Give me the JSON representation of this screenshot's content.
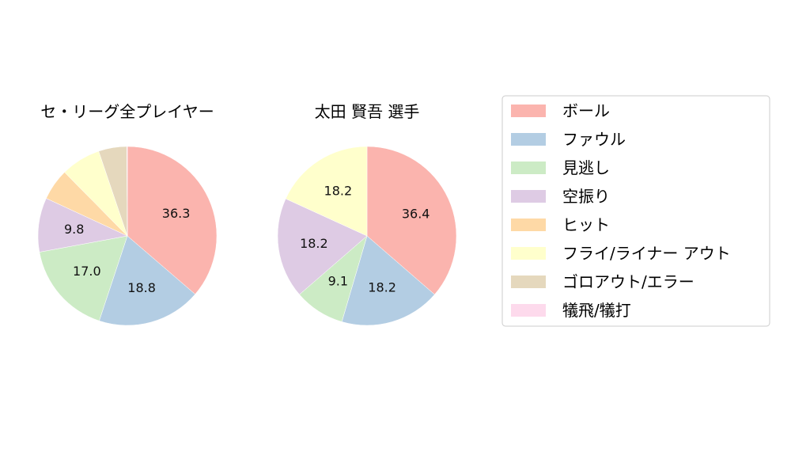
{
  "chart_data": [
    {
      "type": "pie",
      "title": "セ・リーグ全プレイヤー",
      "categories": [
        "ボール",
        "ファウル",
        "見逃し",
        "空振り",
        "ヒット",
        "フライ/ライナー アウト",
        "ゴロアウト/エラー",
        "犠飛/犠打"
      ],
      "values": [
        36.3,
        18.8,
        17.0,
        9.8,
        5.7,
        7.2,
        5.1,
        0.1
      ],
      "labels": [
        "36.3",
        "18.8",
        "17.0",
        "9.8",
        "",
        "",
        "",
        ""
      ]
    },
    {
      "type": "pie",
      "title": "太田 賢吾  選手",
      "categories": [
        "ボール",
        "ファウル",
        "見逃し",
        "空振り",
        "ヒット",
        "フライ/ライナー アウト",
        "ゴロアウト/エラー",
        "犠飛/犠打"
      ],
      "values": [
        36.4,
        18.2,
        9.1,
        18.2,
        0,
        18.2,
        0,
        0
      ],
      "labels": [
        "36.4",
        "18.2",
        "9.1",
        "18.2",
        "",
        "18.2",
        "",
        ""
      ]
    }
  ],
  "legend": {
    "entries": [
      "ボール",
      "ファウル",
      "見逃し",
      "空振り",
      "ヒット",
      "フライ/ライナー アウト",
      "ゴロアウト/エラー",
      "犠飛/犠打"
    ],
    "colors": [
      "#fbb4ae",
      "#b3cde3",
      "#ccebc5",
      "#decbe4",
      "#fed9a6",
      "#ffffcc",
      "#e5d8bd",
      "#fddaec"
    ]
  }
}
